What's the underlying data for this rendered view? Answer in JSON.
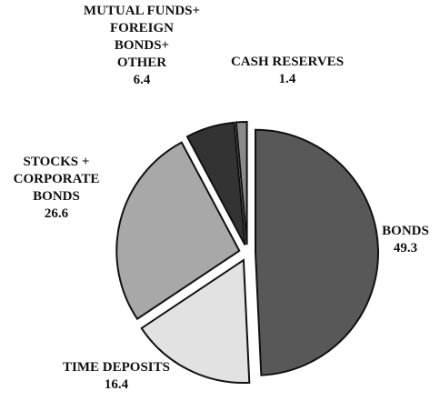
{
  "chart_data": {
    "type": "pie",
    "categories": [
      "BONDS",
      "TIME DEPOSITS",
      "STOCKS +\nCORPORATE\nBONDS",
      "MUTUAL FUNDS+\nFOREIGN\nBONDS+\nOTHER",
      "CASH RESERVES"
    ],
    "values": [
      49.3,
      16.4,
      26.6,
      6.4,
      1.4
    ],
    "colors": [
      "#585858",
      "#e2e2e2",
      "#a8a8a8",
      "#333333",
      "#8a8a8a"
    ]
  }
}
